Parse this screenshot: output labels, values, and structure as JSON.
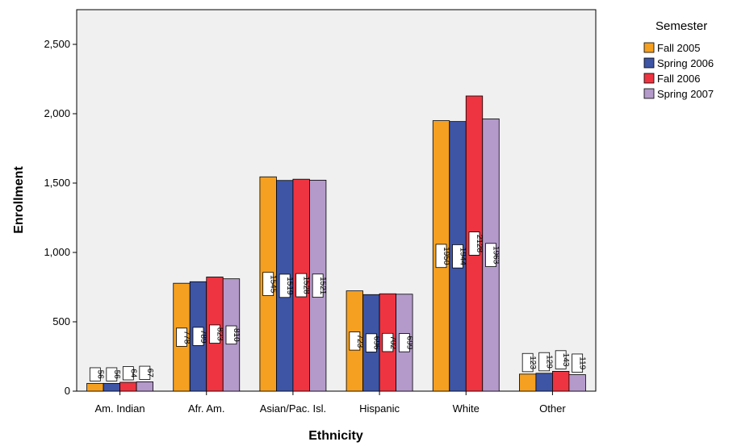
{
  "chart_data": {
    "type": "bar",
    "xlabel": "Ethnicity",
    "ylabel": "Enrollment",
    "ylim": [
      0,
      2750
    ],
    "yticks": [
      0,
      500,
      1000,
      1500,
      2000,
      2500
    ],
    "ytick_labels": [
      "0",
      "500",
      "1,000",
      "1,500",
      "2,000",
      "2,500"
    ],
    "grid": false,
    "legend_title": "Semester",
    "legend_position": "right",
    "categories": [
      "Am. Indian",
      "Afr. Am.",
      "Asian/Pac. Isl.",
      "Hispanic",
      "White",
      "Other"
    ],
    "series": [
      {
        "name": "Fall 2005",
        "color": "#f5a020",
        "values": [
          56,
          778,
          1545,
          723,
          1950,
          123
        ]
      },
      {
        "name": "Spring 2006",
        "color": "#3e55a6",
        "values": [
          56,
          789,
          1519,
          696,
          1944,
          129
        ]
      },
      {
        "name": "Fall 2006",
        "color": "#ee3440",
        "values": [
          64,
          823,
          1528,
          702,
          2128,
          143
        ]
      },
      {
        "name": "Spring 2007",
        "color": "#b49acb",
        "values": [
          67,
          810,
          1521,
          699,
          1963,
          119
        ]
      }
    ]
  }
}
